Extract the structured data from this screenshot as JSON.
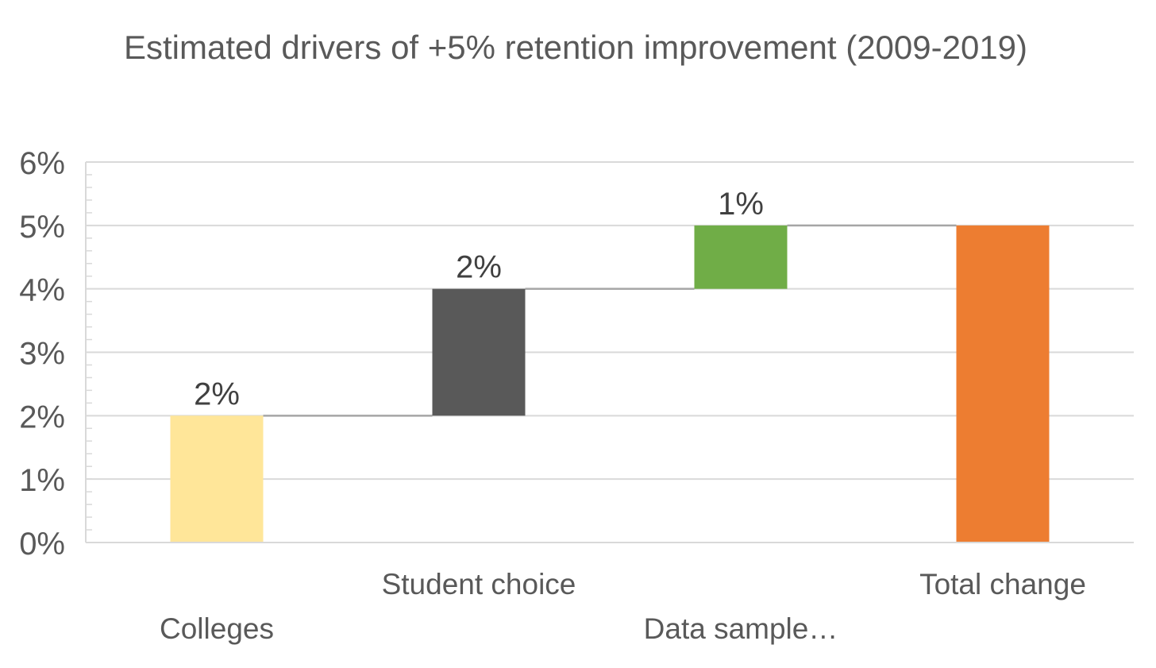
{
  "chart_data": {
    "type": "bar",
    "subtype": "waterfall",
    "title": "Estimated drivers of +5% retention improvement (2009-2019)",
    "xlabel": "",
    "ylabel": "",
    "ylim": [
      0,
      6
    ],
    "y_unit": "%",
    "y_ticks": [
      "0%",
      "1%",
      "2%",
      "3%",
      "4%",
      "5%",
      "6%"
    ],
    "grid": true,
    "categories": [
      "Colleges",
      "Student choice",
      "Data sample...",
      "Total change"
    ],
    "category_labels_display": [
      "Colleges",
      "Student choice",
      "Data sample…",
      "Total change"
    ],
    "bars": [
      {
        "category": "Colleges",
        "start": 0,
        "end": 2,
        "value": 2,
        "label": "2%",
        "color": "#FFE699"
      },
      {
        "category": "Student choice",
        "start": 2,
        "end": 4,
        "value": 2,
        "label": "2%",
        "color": "#595959"
      },
      {
        "category": "Data sample...",
        "start": 4,
        "end": 5,
        "value": 1,
        "label": "1%",
        "color": "#70AD47"
      },
      {
        "category": "Total change",
        "start": 0,
        "end": 5,
        "value": 5,
        "label": "",
        "color": "#ED7D31"
      }
    ],
    "connector_color": "#A6A6A6",
    "grid_color": "#D9D9D9",
    "axis_color": "#D9D9D9"
  }
}
